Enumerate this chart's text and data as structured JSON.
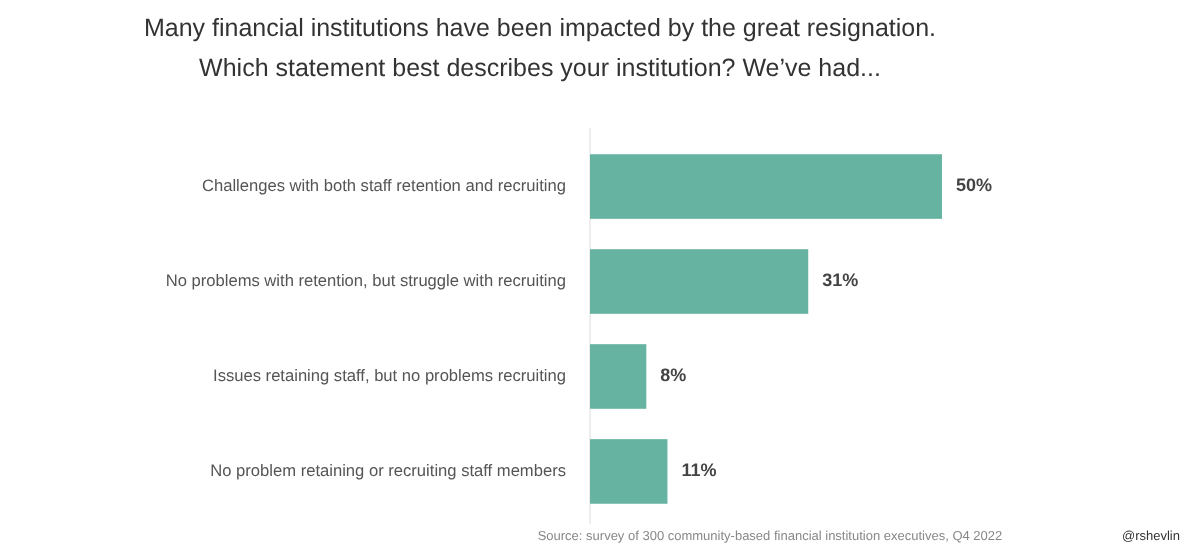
{
  "chart_data": {
    "type": "bar",
    "orientation": "horizontal",
    "title": "Many financial institutions have been impacted by the great resignation.\nWhich statement best describes your institution? We’ve had...",
    "categories": [
      "Challenges with both staff retention and recruiting",
      "No problems with retention, but struggle with recruiting",
      "Issues retaining staff, but no problems recruiting",
      "No problem retaining or recruiting staff members"
    ],
    "values": [
      50,
      31,
      8,
      11
    ],
    "value_labels": [
      "50%",
      "31%",
      "8%",
      "11%"
    ],
    "color": "#65b3a0",
    "annotations": [
      "Source: survey of 300 community-based financial institution executives, Q4 2022",
      "@rshevlin"
    ]
  }
}
